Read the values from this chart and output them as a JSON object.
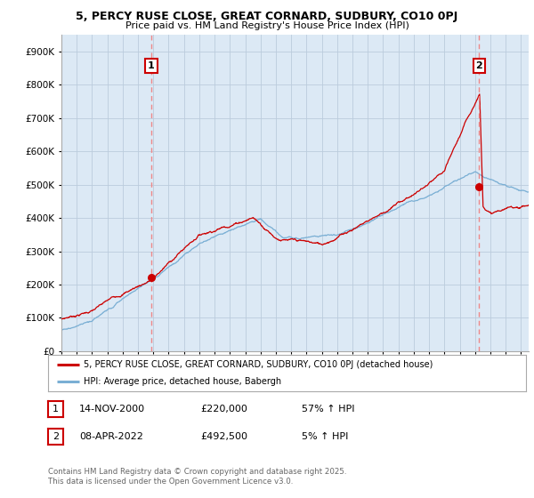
{
  "title": "5, PERCY RUSE CLOSE, GREAT CORNARD, SUDBURY, CO10 0PJ",
  "subtitle": "Price paid vs. HM Land Registry's House Price Index (HPI)",
  "ylabel_ticks": [
    "£0",
    "£100K",
    "£200K",
    "£300K",
    "£400K",
    "£500K",
    "£600K",
    "£700K",
    "£800K",
    "£900K"
  ],
  "ytick_values": [
    0,
    100000,
    200000,
    300000,
    400000,
    500000,
    600000,
    700000,
    800000,
    900000
  ],
  "ylim": [
    0,
    950000
  ],
  "xlim_start": 1995,
  "xlim_end": 2025.5,
  "sale1_date": 2000.87,
  "sale1_price": 220000,
  "sale1_label": "1",
  "sale2_date": 2022.27,
  "sale2_price": 492500,
  "sale2_label": "2",
  "red_line_color": "#cc0000",
  "blue_line_color": "#7aafd4",
  "vline_color": "#ee8888",
  "chart_bg_color": "#dce9f5",
  "legend_label_red": "5, PERCY RUSE CLOSE, GREAT CORNARD, SUDBURY, CO10 0PJ (detached house)",
  "legend_label_blue": "HPI: Average price, detached house, Babergh",
  "table_row1": [
    "1",
    "14-NOV-2000",
    "£220,000",
    "57% ↑ HPI"
  ],
  "table_row2": [
    "2",
    "08-APR-2022",
    "£492,500",
    "5% ↑ HPI"
  ],
  "footer": "Contains HM Land Registry data © Crown copyright and database right 2025.\nThis data is licensed under the Open Government Licence v3.0.",
  "background_color": "#ffffff",
  "grid_color": "#bbccdd"
}
